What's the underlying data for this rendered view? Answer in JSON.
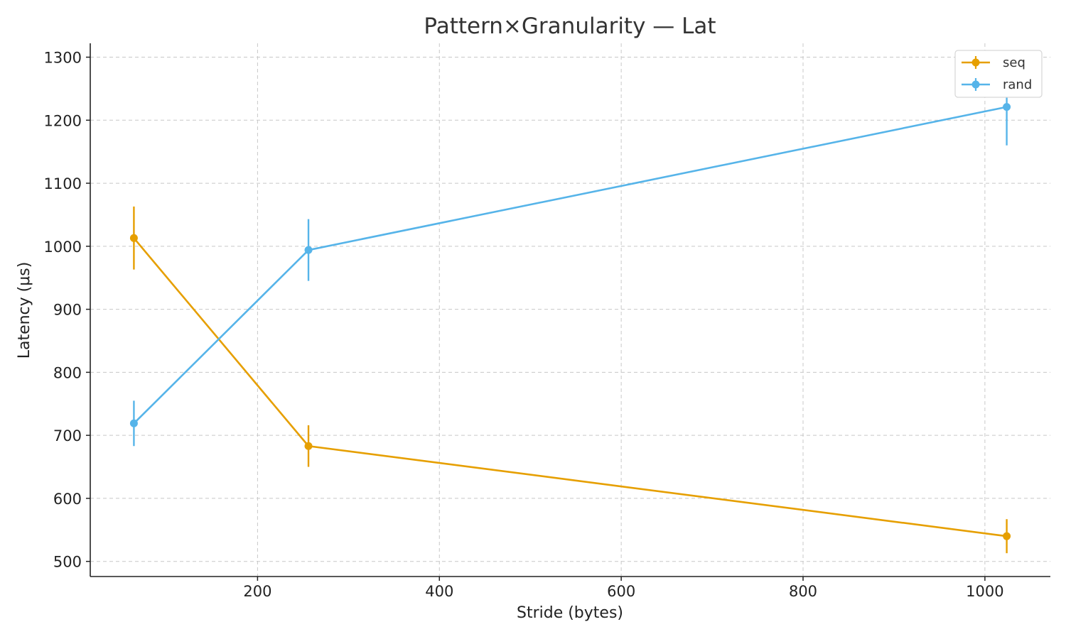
{
  "chart_data": {
    "type": "line",
    "title": "Pattern×Granularity — Lat",
    "xlabel": "Stride (bytes)",
    "ylabel": "Latency (μs)",
    "x": [
      64,
      256,
      1024
    ],
    "xlim": [
      16,
      1072
    ],
    "ylim": [
      476,
      1322
    ],
    "xticks": [
      200,
      400,
      600,
      800,
      1000
    ],
    "yticks": [
      500,
      600,
      700,
      800,
      900,
      1000,
      1100,
      1200,
      1300
    ],
    "grid": true,
    "legend_position": "top-right",
    "series": [
      {
        "name": "seq",
        "color": "#E69F00",
        "values": [
          1013,
          683,
          540
        ],
        "errors": [
          50,
          33,
          27
        ]
      },
      {
        "name": "rand",
        "color": "#56B4E9",
        "values": [
          719,
          994,
          1221
        ],
        "errors": [
          36,
          49,
          61
        ]
      }
    ]
  }
}
